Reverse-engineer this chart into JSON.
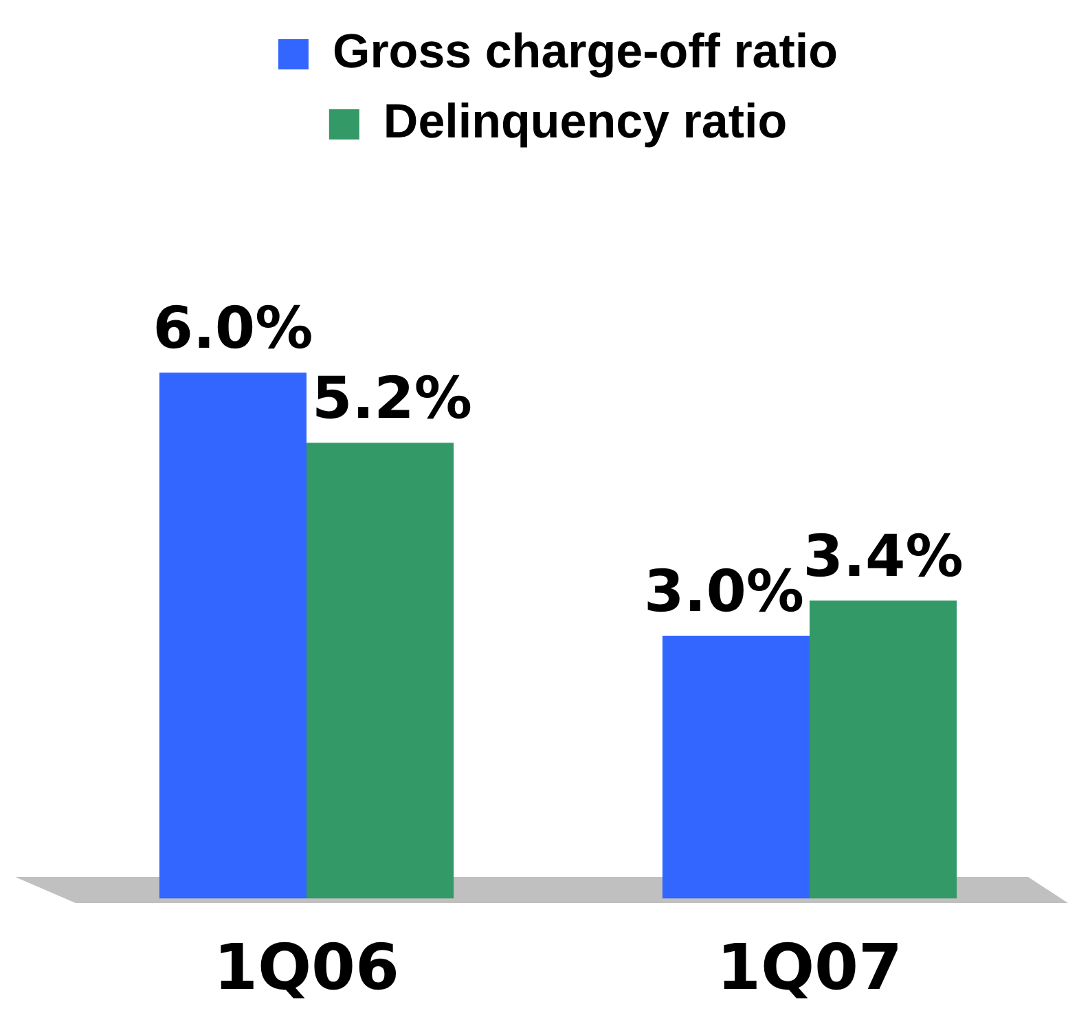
{
  "chart_data": {
    "type": "bar",
    "categories": [
      "1Q06",
      "1Q07"
    ],
    "series": [
      {
        "name": "Gross charge-off ratio",
        "color": "#3366ff",
        "values": [
          6.0,
          3.0
        ],
        "value_labels": [
          "6.0%",
          "3.0%"
        ]
      },
      {
        "name": "Delinquency ratio",
        "color": "#339966",
        "values": [
          5.2,
          3.4
        ],
        "value_labels": [
          "5.2%",
          "3.4%"
        ]
      }
    ],
    "legend": "top",
    "tick_labels": "x"
  }
}
